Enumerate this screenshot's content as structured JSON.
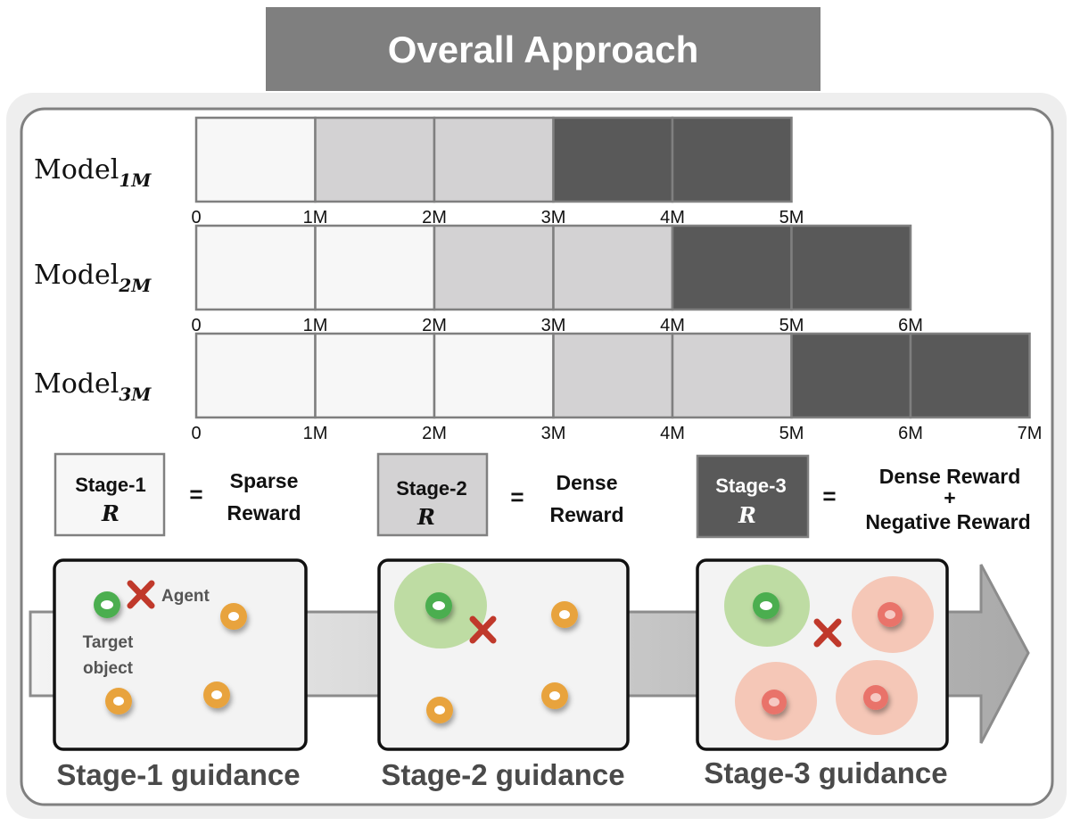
{
  "title": "Overall Approach",
  "models": [
    {
      "name": "Model",
      "subscript": "1M",
      "ticks": [
        "0",
        "1M",
        "2M",
        "3M",
        "4M",
        "5M"
      ],
      "segments": [
        1,
        2,
        2,
        3,
        3
      ]
    },
    {
      "name": "Model",
      "subscript": "2M",
      "ticks": [
        "0",
        "1M",
        "2M",
        "3M",
        "4M",
        "5M",
        "6M"
      ],
      "segments": [
        1,
        1,
        2,
        2,
        3,
        3
      ]
    },
    {
      "name": "Model",
      "subscript": "3M",
      "ticks": [
        "0",
        "1M",
        "2M",
        "3M",
        "4M",
        "5M",
        "6M",
        "7M"
      ],
      "segments": [
        1,
        1,
        1,
        2,
        2,
        3,
        3
      ]
    }
  ],
  "legend": [
    {
      "stage": "Stage-1",
      "symbol": "R",
      "equals": "=",
      "desc": [
        "Sparse",
        "Reward"
      ]
    },
    {
      "stage": "Stage-2",
      "symbol": "R",
      "equals": "=",
      "desc": [
        "Dense",
        "Reward"
      ]
    },
    {
      "stage": "Stage-3",
      "symbol": "R",
      "equals": "=",
      "desc": [
        "Dense Reward",
        "+",
        "Negative Reward"
      ]
    }
  ],
  "panels": [
    {
      "caption": "Stage-1 guidance",
      "agent_label": "Agent",
      "target_label": [
        "Target",
        "object"
      ]
    },
    {
      "caption": "Stage-2 guidance"
    },
    {
      "caption": "Stage-3 guidance"
    }
  ],
  "colors": {
    "stage1": "#f7f7f7",
    "stage2": "#d3d2d3",
    "stage3": "#595959",
    "title_bg": "#7f7f7f",
    "target": "#4cae4f",
    "object": "#e8a33d",
    "negative": "#e9736b",
    "agent": "#c0392b"
  }
}
